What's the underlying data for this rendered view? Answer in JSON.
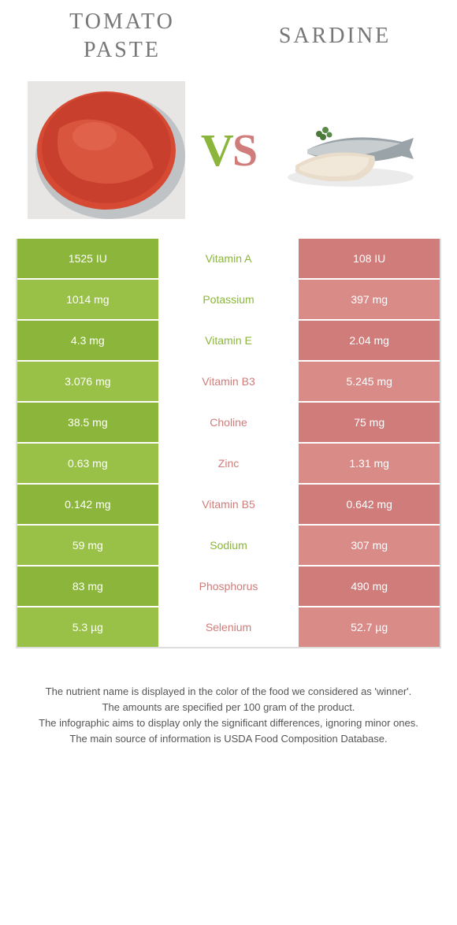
{
  "header": {
    "left_title": "TOMATO\nPASTE",
    "right_title": "SARDINE",
    "vs_label": "VS"
  },
  "colors": {
    "left_accent": "#8bb63b",
    "right_accent": "#d07c7a",
    "left_bar_alt1": "#8bb63b",
    "left_bar_alt2": "#99c148",
    "right_bar_alt1": "#d07c7a",
    "right_bar_alt2": "#d98b88",
    "vs_left": "#8bb63b",
    "vs_right": "#d07c7a"
  },
  "rows": [
    {
      "label": "Vitamin A",
      "left": "1525 IU",
      "right": "108 IU",
      "winner": "left"
    },
    {
      "label": "Potassium",
      "left": "1014 mg",
      "right": "397 mg",
      "winner": "left"
    },
    {
      "label": "Vitamin E",
      "left": "4.3 mg",
      "right": "2.04 mg",
      "winner": "left"
    },
    {
      "label": "Vitamin B3",
      "left": "3.076 mg",
      "right": "5.245 mg",
      "winner": "right"
    },
    {
      "label": "Choline",
      "left": "38.5 mg",
      "right": "75 mg",
      "winner": "right"
    },
    {
      "label": "Zinc",
      "left": "0.63 mg",
      "right": "1.31 mg",
      "winner": "right"
    },
    {
      "label": "Vitamin B5",
      "left": "0.142 mg",
      "right": "0.642 mg",
      "winner": "right"
    },
    {
      "label": "Sodium",
      "left": "59 mg",
      "right": "307 mg",
      "winner": "left"
    },
    {
      "label": "Phosphorus",
      "left": "83 mg",
      "right": "490 mg",
      "winner": "right"
    },
    {
      "label": "Selenium",
      "left": "5.3 µg",
      "right": "52.7 µg",
      "winner": "right"
    }
  ],
  "footer": {
    "line1": "The nutrient name is displayed in the color of the food we considered as 'winner'.",
    "line2": "The amounts are specified per 100 gram of the product.",
    "line3": "The infographic aims to display only the significant differences, ignoring minor ones.",
    "line4": "The main source of information is USDA Food Composition Database."
  }
}
